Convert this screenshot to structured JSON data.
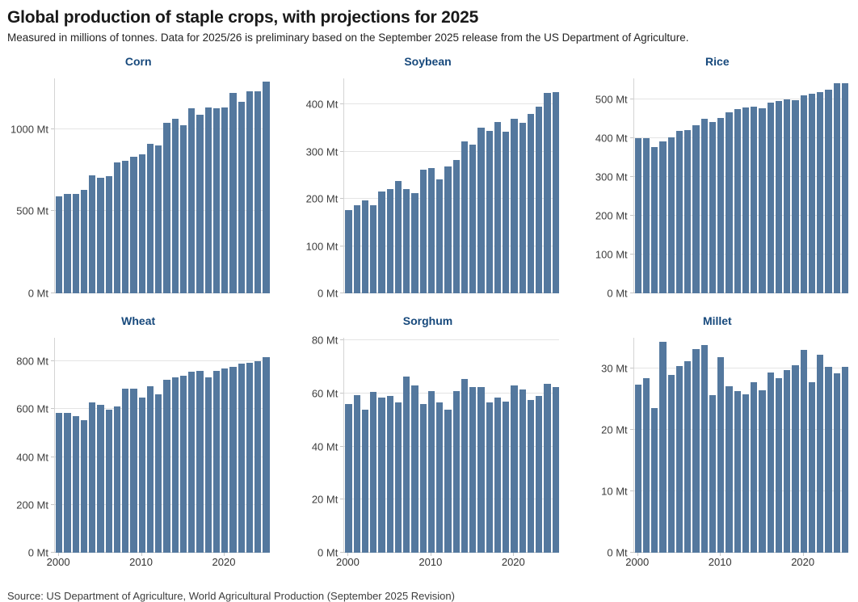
{
  "header": {
    "title": "Global production of staple crops, with projections for 2025",
    "subtitle": "Measured in millions of tonnes. Data for 2025/26 is preliminary based on the September 2025 release from the US Department of Agriculture."
  },
  "footer": {
    "source": "Source: US Department of Agriculture, World Agricultural Production (September 2025 Revision)"
  },
  "colors": {
    "bar": "#54789e",
    "chart_title": "#17497c",
    "gridline": "#e4e4e4",
    "axis_line": "#d4d4d4",
    "axis_text": "#3d3d3d"
  },
  "chart_data": [
    {
      "type": "bar",
      "title": "Corn",
      "unit": "Mt",
      "x": [
        2000,
        2001,
        2002,
        2003,
        2004,
        2005,
        2006,
        2007,
        2008,
        2009,
        2010,
        2011,
        2012,
        2013,
        2014,
        2015,
        2016,
        2017,
        2018,
        2019,
        2020,
        2021,
        2022,
        2023,
        2024,
        2025
      ],
      "values": [
        592,
        605,
        605,
        628,
        720,
        705,
        715,
        800,
        810,
        833,
        848,
        912,
        902,
        1038,
        1065,
        1026,
        1130,
        1090,
        1133,
        1128,
        1135,
        1222,
        1167,
        1232,
        1229,
        1291
      ],
      "ylim": [
        0,
        1310
      ],
      "yticks": [
        0,
        500,
        1000
      ],
      "xticks": [
        2000,
        2010,
        2020
      ],
      "show_xticks": false,
      "grid": true,
      "legend": "none"
    },
    {
      "type": "bar",
      "title": "Soybean",
      "unit": "Mt",
      "x": [
        2000,
        2001,
        2002,
        2003,
        2004,
        2005,
        2006,
        2007,
        2008,
        2009,
        2010,
        2011,
        2012,
        2013,
        2014,
        2015,
        2016,
        2017,
        2018,
        2019,
        2020,
        2021,
        2022,
        2023,
        2024,
        2025
      ],
      "values": [
        176,
        186,
        197,
        187,
        216,
        221,
        237,
        220,
        212,
        261,
        265,
        241,
        269,
        283,
        321,
        315,
        350,
        344,
        362,
        342,
        370,
        361,
        379,
        396,
        424,
        426
      ],
      "ylim": [
        0,
        455
      ],
      "yticks": [
        0,
        100,
        200,
        300,
        400
      ],
      "xticks": [
        2000,
        2010,
        2020
      ],
      "show_xticks": false,
      "grid": true,
      "legend": "none"
    },
    {
      "type": "bar",
      "title": "Rice",
      "unit": "Mt",
      "x": [
        2000,
        2001,
        2002,
        2003,
        2004,
        2005,
        2006,
        2007,
        2008,
        2009,
        2010,
        2011,
        2012,
        2013,
        2014,
        2015,
        2016,
        2017,
        2018,
        2019,
        2020,
        2021,
        2022,
        2023,
        2024,
        2025
      ],
      "values": [
        400,
        400,
        378,
        391,
        402,
        418,
        420,
        434,
        449,
        441,
        451,
        467,
        474,
        480,
        482,
        477,
        492,
        495,
        500,
        498,
        511,
        515,
        518,
        524,
        542,
        542
      ],
      "ylim": [
        0,
        554
      ],
      "yticks": [
        0,
        100,
        200,
        300,
        400,
        500
      ],
      "xticks": [
        2000,
        2010,
        2020
      ],
      "show_xticks": false,
      "grid": true,
      "legend": "none"
    },
    {
      "type": "bar",
      "title": "Wheat",
      "unit": "Mt",
      "x": [
        2000,
        2001,
        2002,
        2003,
        2004,
        2005,
        2006,
        2007,
        2008,
        2009,
        2010,
        2011,
        2012,
        2013,
        2014,
        2015,
        2016,
        2017,
        2018,
        2019,
        2020,
        2021,
        2022,
        2023,
        2024,
        2025
      ],
      "values": [
        583,
        583,
        569,
        555,
        628,
        619,
        597,
        611,
        684,
        687,
        648,
        697,
        661,
        722,
        732,
        739,
        757,
        760,
        731,
        760,
        771,
        778,
        789,
        793,
        799,
        816
      ],
      "ylim": [
        0,
        898
      ],
      "yticks": [
        0,
        200,
        400,
        600,
        800
      ],
      "xticks": [
        2000,
        2010,
        2020
      ],
      "show_xticks": true,
      "grid": true,
      "legend": "none"
    },
    {
      "type": "bar",
      "title": "Sorghum",
      "unit": "Mt",
      "x": [
        2000,
        2001,
        2002,
        2003,
        2004,
        2005,
        2006,
        2007,
        2008,
        2009,
        2010,
        2011,
        2012,
        2013,
        2014,
        2015,
        2016,
        2017,
        2018,
        2019,
        2020,
        2021,
        2022,
        2023,
        2024,
        2025
      ],
      "values": [
        56,
        59.5,
        54,
        60.5,
        58.5,
        59,
        56.5,
        66.5,
        63,
        56,
        61,
        56.5,
        54,
        61,
        65.5,
        62.5,
        62.5,
        56.5,
        58.5,
        57,
        63,
        61.5,
        57.5,
        59,
        63.5,
        62.5
      ],
      "ylim": [
        0,
        81
      ],
      "yticks": [
        0,
        20,
        40,
        60,
        80
      ],
      "xticks": [
        2000,
        2010,
        2020
      ],
      "show_xticks": true,
      "grid": true,
      "legend": "none"
    },
    {
      "type": "bar",
      "title": "Millet",
      "unit": "Mt",
      "x": [
        2000,
        2001,
        2002,
        2003,
        2004,
        2005,
        2006,
        2007,
        2008,
        2009,
        2010,
        2011,
        2012,
        2013,
        2014,
        2015,
        2016,
        2017,
        2018,
        2019,
        2020,
        2021,
        2022,
        2023,
        2024,
        2025
      ],
      "values": [
        27.4,
        28.4,
        23.6,
        34.4,
        29,
        30.4,
        31.2,
        33.2,
        33.8,
        25.7,
        31.9,
        27.1,
        26.3,
        25.8,
        27.7,
        26.4,
        29.4,
        28.4,
        29.7,
        30.5,
        33,
        27.8,
        32.2,
        30.2,
        29.2,
        30.3
      ],
      "ylim": [
        0,
        35
      ],
      "yticks": [
        0,
        10,
        20,
        30
      ],
      "xticks": [
        2000,
        2010,
        2020
      ],
      "show_xticks": true,
      "grid": true,
      "legend": "none"
    }
  ]
}
